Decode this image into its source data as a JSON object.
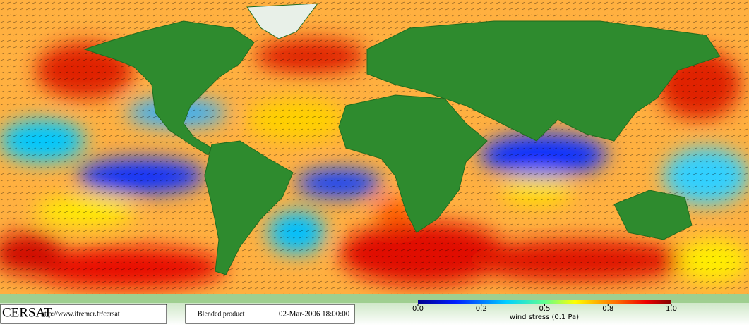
{
  "footer": {
    "logo": "CERSAT",
    "url": "http://www.ifremer.fr/cersat",
    "product": "Blended product",
    "date": "02-Mar-2006 18:00:00"
  },
  "colorbar": {
    "label": "wind stress (0.1 Pa)",
    "lim": [
      0,
      1
    ],
    "ticks": [
      {
        "value": 0,
        "label": "0.0"
      },
      0.2,
      0.5,
      0.8,
      {
        "value": 1,
        "label": "1.0"
      }
    ]
  }
}
